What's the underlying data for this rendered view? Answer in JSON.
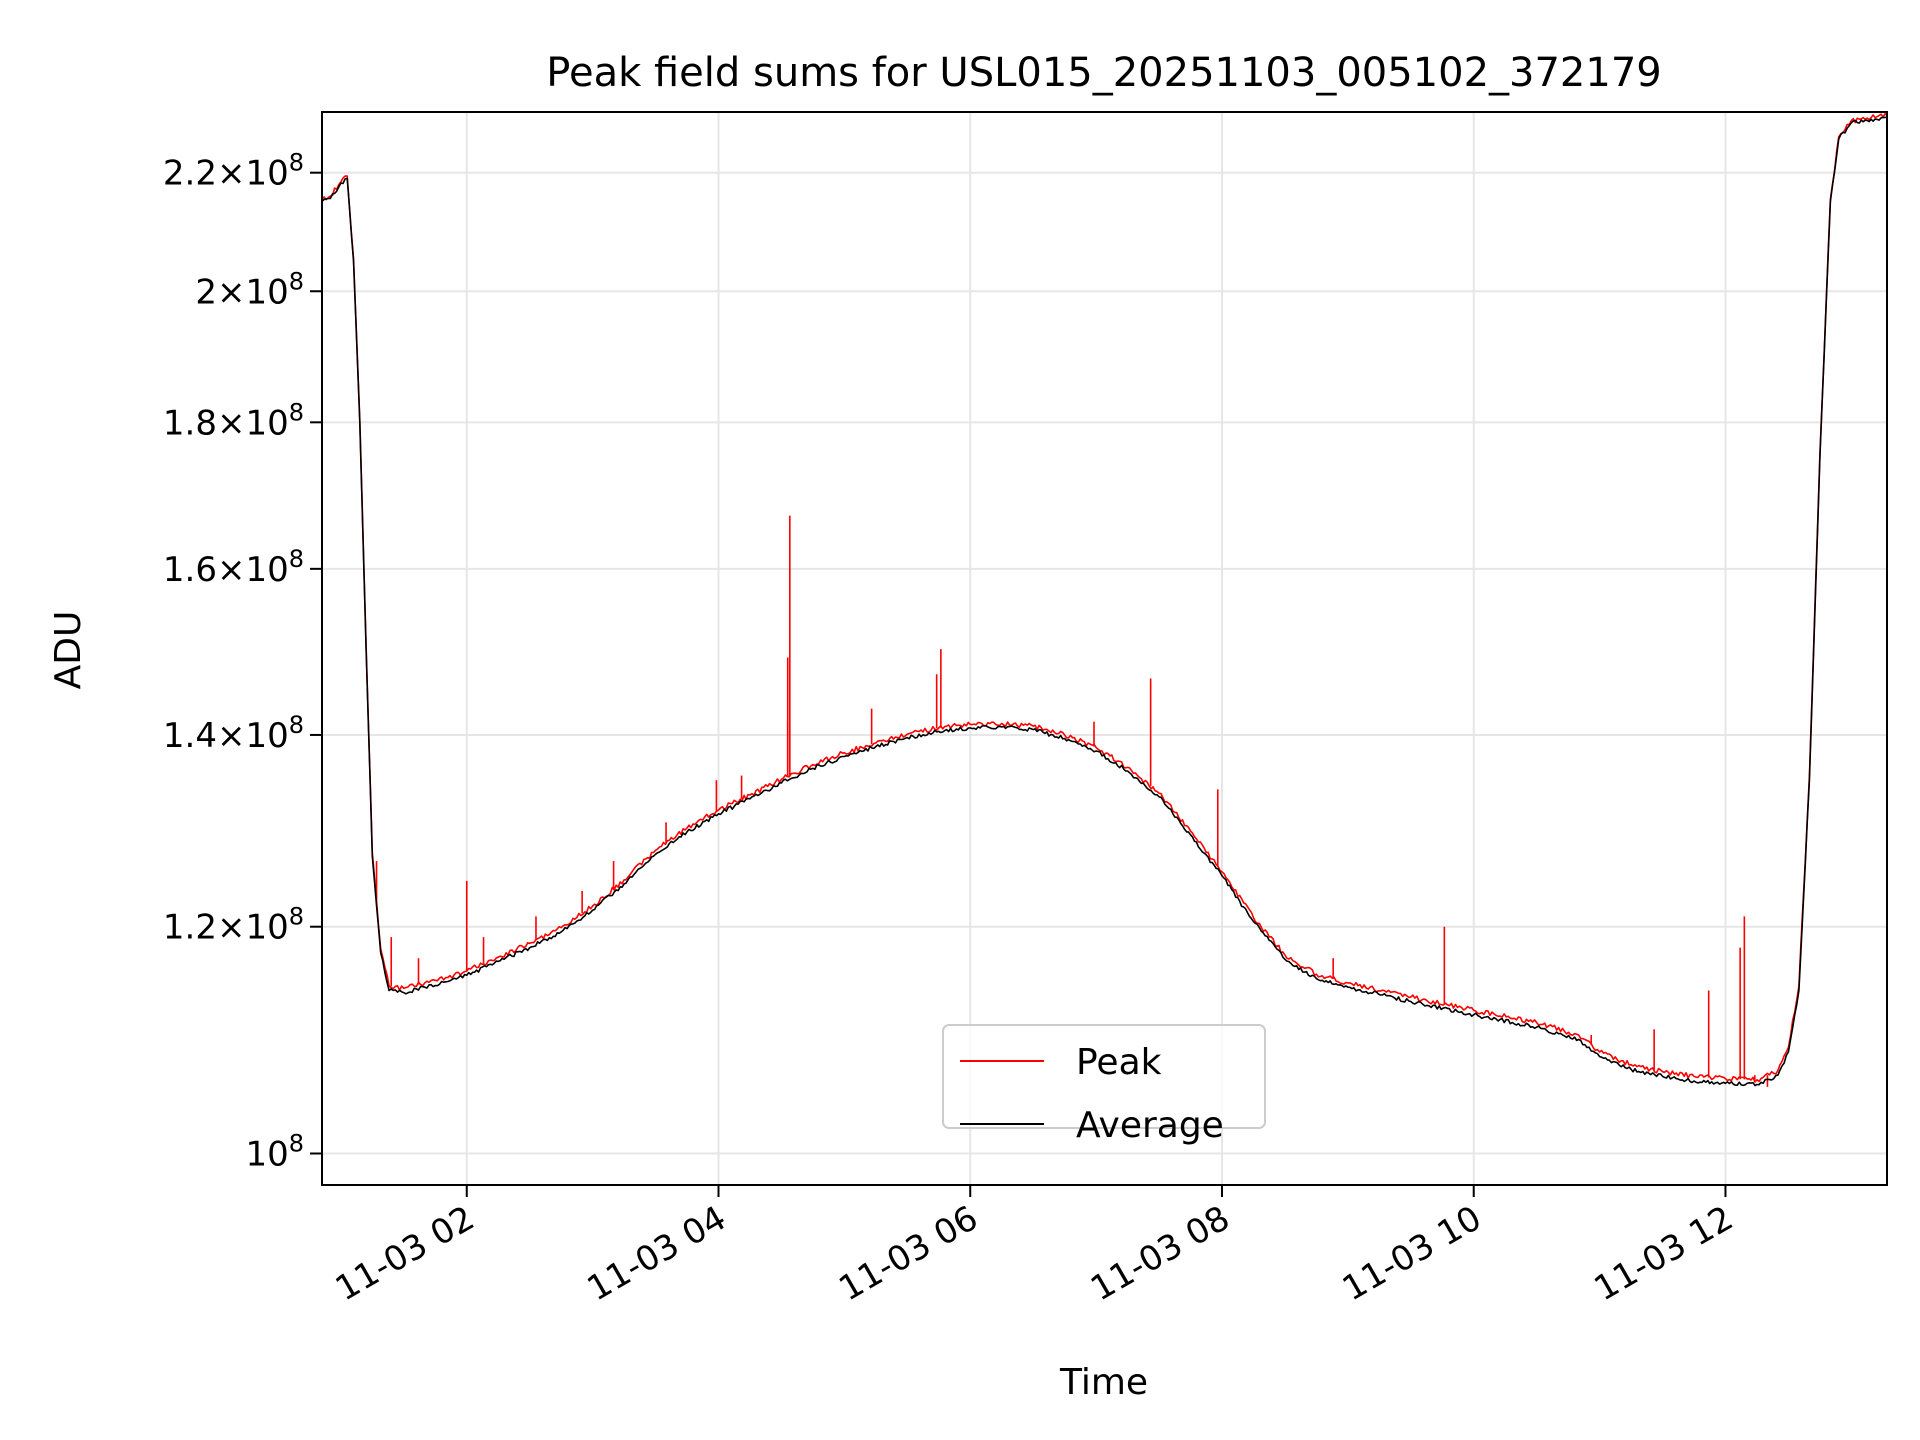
{
  "chart_data": {
    "type": "line",
    "title": "Peak field sums for USL015_20251103_005102_372179",
    "xlabel": "Time",
    "ylabel": "ADU",
    "yscale": "log",
    "xlim": [
      "2025-11-03 00:51",
      "2025-11-03 13:17"
    ],
    "ylim": [
      97500000,
      231000000
    ],
    "grid": true,
    "legend_position": "lower center",
    "x_ticks": [
      {
        "x": "2025-11-03 02:00",
        "label": "11-03 02"
      },
      {
        "x": "2025-11-03 04:00",
        "label": "11-03 04"
      },
      {
        "x": "2025-11-03 06:00",
        "label": "11-03 06"
      },
      {
        "x": "2025-11-03 08:00",
        "label": "11-03 08"
      },
      {
        "x": "2025-11-03 10:00",
        "label": "11-03 10"
      },
      {
        "x": "2025-11-03 12:00",
        "label": "11-03 12"
      }
    ],
    "y_ticks": [
      {
        "y": 100000000,
        "mantissa": "",
        "exponent": "8"
      },
      {
        "y": 120000000,
        "mantissa": "1.2",
        "exponent": "8"
      },
      {
        "y": 140000000,
        "mantissa": "1.4",
        "exponent": "8"
      },
      {
        "y": 160000000,
        "mantissa": "1.6",
        "exponent": "8"
      },
      {
        "y": 180000000,
        "mantissa": "1.8",
        "exponent": "8"
      },
      {
        "y": 200000000,
        "mantissa": "2",
        "exponent": "8"
      },
      {
        "y": 220000000,
        "mantissa": "2.2",
        "exponent": "8"
      }
    ],
    "series": [
      {
        "name": "Average",
        "color": "#000000",
        "points": [
          [
            "2025-11-03 00:51",
            215000000
          ],
          [
            "2025-11-03 00:55",
            215500000
          ],
          [
            "2025-11-03 00:59",
            217500000
          ],
          [
            "2025-11-03 01:03",
            219000000
          ],
          [
            "2025-11-03 01:06",
            205000000
          ],
          [
            "2025-11-03 01:09",
            180000000
          ],
          [
            "2025-11-03 01:12",
            150000000
          ],
          [
            "2025-11-03 01:15",
            127000000
          ],
          [
            "2025-11-03 01:19",
            117500000
          ],
          [
            "2025-11-03 01:23",
            114000000
          ],
          [
            "2025-11-03 01:30",
            113800000
          ],
          [
            "2025-11-03 01:40",
            114300000
          ],
          [
            "2025-11-03 01:50",
            114800000
          ],
          [
            "2025-11-03 02:00",
            115400000
          ],
          [
            "2025-11-03 02:15",
            116700000
          ],
          [
            "2025-11-03 02:30",
            118000000
          ],
          [
            "2025-11-03 02:45",
            119500000
          ],
          [
            "2025-11-03 03:00",
            121600000
          ],
          [
            "2025-11-03 03:15",
            124200000
          ],
          [
            "2025-11-03 03:30",
            127200000
          ],
          [
            "2025-11-03 03:45",
            129500000
          ],
          [
            "2025-11-03 04:00",
            131400000
          ],
          [
            "2025-11-03 04:15",
            133000000
          ],
          [
            "2025-11-03 04:30",
            134700000
          ],
          [
            "2025-11-03 04:45",
            136300000
          ],
          [
            "2025-11-03 05:00",
            137600000
          ],
          [
            "2025-11-03 05:15",
            138700000
          ],
          [
            "2025-11-03 05:30",
            139700000
          ],
          [
            "2025-11-03 05:45",
            140400000
          ],
          [
            "2025-11-03 06:00",
            140800000
          ],
          [
            "2025-11-03 06:15",
            140900000
          ],
          [
            "2025-11-03 06:30",
            140600000
          ],
          [
            "2025-11-03 06:45",
            139600000
          ],
          [
            "2025-11-03 07:00",
            138200000
          ],
          [
            "2025-11-03 07:15",
            136000000
          ],
          [
            "2025-11-03 07:30",
            133200000
          ],
          [
            "2025-11-03 07:45",
            129200000
          ],
          [
            "2025-11-03 08:00",
            125000000
          ],
          [
            "2025-11-03 08:15",
            120500000
          ],
          [
            "2025-11-03 08:30",
            116900000
          ],
          [
            "2025-11-03 08:45",
            115100000
          ],
          [
            "2025-11-03 09:00",
            114300000
          ],
          [
            "2025-11-03 09:30",
            113000000
          ],
          [
            "2025-11-03 10:00",
            111800000
          ],
          [
            "2025-11-03 10:30",
            110700000
          ],
          [
            "2025-11-03 10:50",
            109600000
          ],
          [
            "2025-11-03 11:00",
            108100000
          ],
          [
            "2025-11-03 11:15",
            107000000
          ],
          [
            "2025-11-03 11:30",
            106400000
          ],
          [
            "2025-11-03 11:45",
            106000000
          ],
          [
            "2025-11-03 12:00",
            105800000
          ],
          [
            "2025-11-03 12:15",
            105700000
          ],
          [
            "2025-11-03 12:25",
            106500000
          ],
          [
            "2025-11-03 12:30",
            108500000
          ],
          [
            "2025-11-03 12:35",
            114000000
          ],
          [
            "2025-11-03 12:40",
            135000000
          ],
          [
            "2025-11-03 12:45",
            175000000
          ],
          [
            "2025-11-03 12:50",
            215000000
          ],
          [
            "2025-11-03 12:54",
            226000000
          ],
          [
            "2025-11-03 13:00",
            229000000
          ],
          [
            "2025-11-03 13:17",
            230000000
          ]
        ]
      },
      {
        "name": "Peak",
        "color": "#ff0000",
        "points": [
          [
            "2025-11-03 00:51",
            215400000
          ],
          [
            "2025-11-03 00:55",
            215900000
          ],
          [
            "2025-11-03 00:59",
            217900000
          ],
          [
            "2025-11-03 01:03",
            219400000
          ],
          [
            "2025-11-03 01:06",
            205400000
          ],
          [
            "2025-11-03 01:09",
            180400000
          ],
          [
            "2025-11-03 01:12",
            150400000
          ],
          [
            "2025-11-03 01:15",
            127400000
          ],
          [
            "2025-11-03 01:19",
            117900000
          ],
          [
            "2025-11-03 01:23",
            114400000
          ],
          [
            "2025-11-03 01:30",
            114200000
          ],
          [
            "2025-11-03 01:40",
            114700000
          ],
          [
            "2025-11-03 01:50",
            115200000
          ],
          [
            "2025-11-03 02:00",
            115800000
          ],
          [
            "2025-11-03 02:15",
            117100000
          ],
          [
            "2025-11-03 02:30",
            118400000
          ],
          [
            "2025-11-03 02:45",
            119900000
          ],
          [
            "2025-11-03 03:00",
            122000000
          ],
          [
            "2025-11-03 03:15",
            124600000
          ],
          [
            "2025-11-03 03:30",
            127600000
          ],
          [
            "2025-11-03 03:45",
            129900000
          ],
          [
            "2025-11-03 04:00",
            131800000
          ],
          [
            "2025-11-03 04:15",
            133400000
          ],
          [
            "2025-11-03 04:30",
            135100000
          ],
          [
            "2025-11-03 04:45",
            136700000
          ],
          [
            "2025-11-03 05:00",
            138000000
          ],
          [
            "2025-11-03 05:15",
            139100000
          ],
          [
            "2025-11-03 05:30",
            140100000
          ],
          [
            "2025-11-03 05:45",
            140800000
          ],
          [
            "2025-11-03 06:00",
            141200000
          ],
          [
            "2025-11-03 06:15",
            141300000
          ],
          [
            "2025-11-03 06:30",
            141000000
          ],
          [
            "2025-11-03 06:45",
            140000000
          ],
          [
            "2025-11-03 07:00",
            138600000
          ],
          [
            "2025-11-03 07:15",
            136400000
          ],
          [
            "2025-11-03 07:30",
            133600000
          ],
          [
            "2025-11-03 07:45",
            129600000
          ],
          [
            "2025-11-03 08:00",
            125400000
          ],
          [
            "2025-11-03 08:15",
            120900000
          ],
          [
            "2025-11-03 08:30",
            117300000
          ],
          [
            "2025-11-03 08:45",
            115500000
          ],
          [
            "2025-11-03 09:00",
            114700000
          ],
          [
            "2025-11-03 09:30",
            113400000
          ],
          [
            "2025-11-03 10:00",
            112200000
          ],
          [
            "2025-11-03 10:30",
            111100000
          ],
          [
            "2025-11-03 10:50",
            110000000
          ],
          [
            "2025-11-03 11:00",
            108500000
          ],
          [
            "2025-11-03 11:15",
            107400000
          ],
          [
            "2025-11-03 11:30",
            106800000
          ],
          [
            "2025-11-03 11:45",
            106400000
          ],
          [
            "2025-11-03 12:00",
            106200000
          ],
          [
            "2025-11-03 12:15",
            106100000
          ],
          [
            "2025-11-03 12:25",
            106900000
          ],
          [
            "2025-11-03 12:30",
            108900000
          ],
          [
            "2025-11-03 12:35",
            114400000
          ],
          [
            "2025-11-03 12:40",
            135400000
          ],
          [
            "2025-11-03 12:45",
            175400000
          ],
          [
            "2025-11-03 12:50",
            215400000
          ],
          [
            "2025-11-03 12:54",
            226400000
          ],
          [
            "2025-11-03 13:00",
            229400000
          ],
          [
            "2025-11-03 13:17",
            230400000
          ]
        ],
        "spikes": [
          [
            "2025-11-03 01:17",
            126500000
          ],
          [
            "2025-11-03 01:24",
            119000000
          ],
          [
            "2025-11-03 01:37",
            117000000
          ],
          [
            "2025-11-03 02:00",
            124500000
          ],
          [
            "2025-11-03 02:08",
            119000000
          ],
          [
            "2025-11-03 02:33",
            121000000
          ],
          [
            "2025-11-03 02:55",
            123500000
          ],
          [
            "2025-11-03 03:10",
            126500000
          ],
          [
            "2025-11-03 03:35",
            130500000
          ],
          [
            "2025-11-03 03:59",
            135000000
          ],
          [
            "2025-11-03 04:11",
            135500000
          ],
          [
            "2025-11-03 04:33",
            141500000
          ],
          [
            "2025-11-03 04:33",
            149000000
          ],
          [
            "2025-11-03 04:34",
            167000000
          ],
          [
            "2025-11-03 05:13",
            143000000
          ],
          [
            "2025-11-03 05:44",
            147000000
          ],
          [
            "2025-11-03 05:46",
            150000000
          ],
          [
            "2025-11-03 06:59",
            141500000
          ],
          [
            "2025-11-03 07:26",
            146500000
          ],
          [
            "2025-11-03 07:58",
            134000000
          ],
          [
            "2025-11-03 08:53",
            117000000
          ],
          [
            "2025-11-03 09:46",
            120000000
          ],
          [
            "2025-11-03 10:56",
            110000000
          ],
          [
            "2025-11-03 11:26",
            110500000
          ],
          [
            "2025-11-03 11:52",
            114000000
          ],
          [
            "2025-11-03 12:07",
            118000000
          ],
          [
            "2025-11-03 12:09",
            121000000
          ],
          [
            "2025-11-03 12:14",
            106500000
          ],
          [
            "2025-11-03 12:20",
            105500000
          ]
        ]
      }
    ]
  }
}
